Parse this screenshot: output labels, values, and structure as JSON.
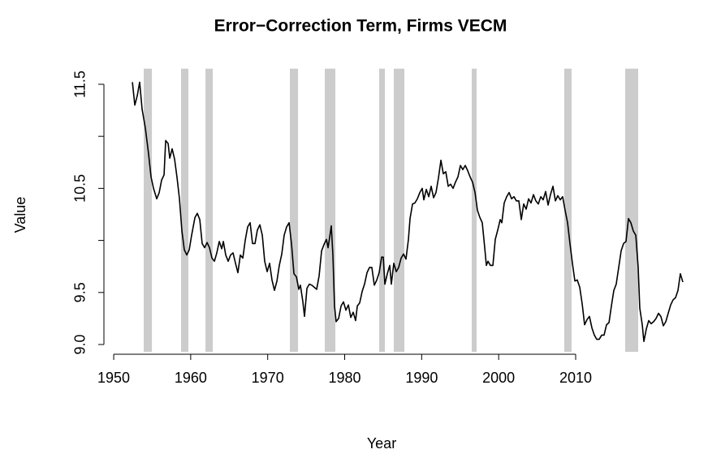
{
  "chart_data": {
    "type": "line",
    "title": "Error−Correction Term, Firms VECM",
    "x_label": "Year",
    "y_label": "Value",
    "color": "#000000",
    "band_color": "#cccccc",
    "xlim": [
      1949.7,
      2026.6
    ],
    "ylim": [
      8.93,
      11.65
    ],
    "xticks": [
      1950,
      1960,
      1970,
      1980,
      1990,
      2000,
      2010
    ],
    "yticks": [
      {
        "value": 9,
        "label": "9.0"
      },
      9.5,
      {
        "value": 10,
        "label": null
      },
      10.5,
      {
        "value": 11,
        "label": null
      },
      11.5
    ],
    "recessions": [
      [
        1953.9,
        1954.96
      ],
      [
        1958.75,
        1959.7
      ],
      [
        1961.92,
        1962.87
      ],
      [
        1972.88,
        1973.94
      ],
      [
        1977.42,
        1978.79
      ],
      [
        1984.48,
        1985.22
      ],
      [
        1986.38,
        1987.75
      ],
      [
        1996.5,
        1997.14
      ],
      [
        2008.52,
        2009.47
      ],
      [
        2016.43,
        2018.12
      ]
    ],
    "x": [
      1952.43,
      1952.74,
      1953.06,
      1953.37,
      1953.69,
      1954.11,
      1954.53,
      1954.85,
      1955.17,
      1955.59,
      1955.91,
      1956.22,
      1956.54,
      1956.75,
      1957.07,
      1957.28,
      1957.59,
      1957.91,
      1958.23,
      1958.54,
      1958.86,
      1959.17,
      1959.49,
      1959.81,
      1960.12,
      1960.55,
      1960.86,
      1961.18,
      1961.49,
      1961.81,
      1962.13,
      1962.44,
      1962.76,
      1963.08,
      1963.39,
      1963.71,
      1964.03,
      1964.24,
      1964.55,
      1964.87,
      1965.18,
      1965.5,
      1965.82,
      1966.13,
      1966.45,
      1966.77,
      1967.08,
      1967.4,
      1967.72,
      1968.03,
      1968.35,
      1968.66,
      1968.98,
      1969.3,
      1969.61,
      1969.93,
      1970.25,
      1970.56,
      1970.88,
      1971.2,
      1971.51,
      1971.83,
      1972.14,
      1972.46,
      1972.78,
      1973.09,
      1973.41,
      1973.73,
      1974.04,
      1974.25,
      1974.57,
      1974.78,
      1975.1,
      1975.41,
      1975.73,
      1976.05,
      1976.36,
      1976.68,
      1977.0,
      1977.31,
      1977.63,
      1977.84,
      1978.05,
      1978.26,
      1978.47,
      1978.68,
      1978.89,
      1979.21,
      1979.53,
      1979.84,
      1980.16,
      1980.48,
      1980.79,
      1981.11,
      1981.42,
      1981.64,
      1981.95,
      1982.27,
      1982.58,
      1982.9,
      1983.22,
      1983.53,
      1983.85,
      1984.17,
      1984.48,
      1984.8,
      1985.01,
      1985.22,
      1985.54,
      1985.85,
      1986.06,
      1986.38,
      1986.7,
      1987.01,
      1987.33,
      1987.65,
      1987.96,
      1988.28,
      1988.49,
      1988.81,
      1989.12,
      1989.44,
      1989.76,
      1990.07,
      1990.28,
      1990.6,
      1990.92,
      1991.23,
      1991.55,
      1991.86,
      1992.18,
      1992.5,
      1992.81,
      1993.13,
      1993.45,
      1993.76,
      1994.08,
      1994.39,
      1994.71,
      1995.03,
      1995.34,
      1995.66,
      1995.98,
      1996.29,
      1996.61,
      1996.93,
      1997.24,
      1997.56,
      1997.87,
      1998.19,
      1998.4,
      1998.61,
      1998.93,
      1999.25,
      1999.56,
      1999.88,
      2000.2,
      2000.41,
      2000.72,
      2001.04,
      2001.36,
      2001.67,
      2001.99,
      2002.3,
      2002.62,
      2002.94,
      2003.25,
      2003.57,
      2003.89,
      2004.2,
      2004.52,
      2004.83,
      2005.15,
      2005.47,
      2005.78,
      2006.1,
      2006.42,
      2006.73,
      2007.05,
      2007.37,
      2007.68,
      2008.0,
      2008.31,
      2008.63,
      2008.95,
      2009.26,
      2009.58,
      2009.9,
      2010.21,
      2010.53,
      2010.85,
      2011.16,
      2011.48,
      2011.79,
      2012.11,
      2012.43,
      2012.74,
      2013.06,
      2013.38,
      2013.69,
      2014.01,
      2014.33,
      2014.64,
      2014.96,
      2015.27,
      2015.59,
      2015.91,
      2016.22,
      2016.54,
      2016.86,
      2017.17,
      2017.49,
      2017.81,
      2018.12,
      2018.33,
      2018.65,
      2018.86,
      2019.18,
      2019.49,
      2019.81,
      2020.13,
      2020.44,
      2020.76,
      2021.07,
      2021.39,
      2021.71,
      2022.02,
      2022.34,
      2022.66,
      2022.97,
      2023.29,
      2023.6,
      2023.92
    ],
    "values": [
      11.52,
      11.3,
      11.39,
      11.52,
      11.26,
      11.08,
      10.83,
      10.61,
      10.5,
      10.4,
      10.46,
      10.58,
      10.63,
      10.96,
      10.93,
      10.79,
      10.88,
      10.78,
      10.6,
      10.4,
      10.09,
      9.91,
      9.86,
      9.91,
      10.05,
      10.22,
      10.26,
      10.2,
      9.97,
      9.93,
      9.98,
      9.93,
      9.83,
      9.8,
      9.88,
      9.99,
      9.92,
      9.99,
      9.86,
      9.8,
      9.86,
      9.88,
      9.78,
      9.69,
      9.86,
      9.83,
      10.0,
      10.13,
      10.17,
      9.97,
      9.97,
      10.1,
      10.15,
      10.05,
      9.8,
      9.7,
      9.78,
      9.62,
      9.52,
      9.61,
      9.76,
      9.87,
      10.05,
      10.13,
      10.17,
      9.97,
      9.68,
      9.65,
      9.53,
      9.57,
      9.41,
      9.27,
      9.54,
      9.58,
      9.57,
      9.55,
      9.53,
      9.66,
      9.9,
      9.96,
      10.01,
      9.93,
      10.03,
      10.14,
      9.86,
      9.37,
      9.22,
      9.25,
      9.37,
      9.41,
      9.33,
      9.38,
      9.26,
      9.31,
      9.23,
      9.37,
      9.4,
      9.51,
      9.58,
      9.69,
      9.74,
      9.74,
      9.57,
      9.62,
      9.69,
      9.84,
      9.84,
      9.58,
      9.68,
      9.76,
      9.58,
      9.78,
      9.7,
      9.74,
      9.83,
      9.87,
      9.82,
      10.01,
      10.21,
      10.35,
      10.36,
      10.4,
      10.46,
      10.5,
      10.39,
      10.49,
      10.42,
      10.52,
      10.41,
      10.46,
      10.6,
      10.77,
      10.64,
      10.66,
      10.52,
      10.54,
      10.5,
      10.56,
      10.61,
      10.72,
      10.68,
      10.72,
      10.67,
      10.61,
      10.56,
      10.46,
      10.29,
      10.22,
      10.17,
      9.93,
      9.76,
      9.8,
      9.76,
      9.76,
      10.01,
      10.1,
      10.2,
      10.17,
      10.36,
      10.42,
      10.46,
      10.4,
      10.42,
      10.38,
      10.38,
      10.2,
      10.35,
      10.3,
      10.4,
      10.36,
      10.44,
      10.38,
      10.35,
      10.42,
      10.39,
      10.47,
      10.34,
      10.44,
      10.52,
      10.38,
      10.43,
      10.39,
      10.42,
      10.29,
      10.17,
      9.97,
      9.78,
      9.61,
      9.62,
      9.55,
      9.39,
      9.19,
      9.24,
      9.27,
      9.16,
      9.09,
      9.05,
      9.05,
      9.09,
      9.09,
      9.19,
      9.21,
      9.37,
      9.52,
      9.58,
      9.74,
      9.9,
      9.97,
      9.99,
      10.21,
      10.17,
      10.09,
      10.05,
      9.74,
      9.35,
      9.19,
      9.03,
      9.15,
      9.23,
      9.2,
      9.22,
      9.25,
      9.3,
      9.27,
      9.18,
      9.22,
      9.3,
      9.38,
      9.43,
      9.45,
      9.52,
      9.68,
      9.6
    ]
  }
}
